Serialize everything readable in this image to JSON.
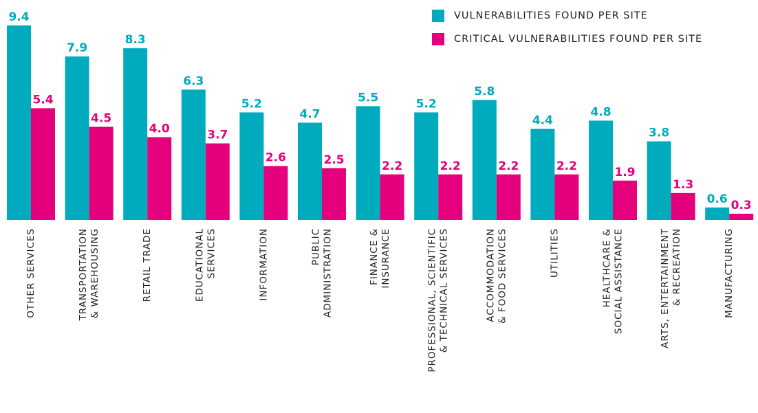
{
  "chart_data": {
    "type": "bar",
    "categories": [
      [
        "OTHER SERVICES"
      ],
      [
        "TRANSPORTATION",
        "& WAREHOUSING"
      ],
      [
        "RETAIL TRADE"
      ],
      [
        "EDUCATIONAL",
        "SERVICES"
      ],
      [
        "INFORMATION"
      ],
      [
        "PUBLIC",
        "ADMINISTRATION"
      ],
      [
        "FINANCE &",
        "INSURANCE"
      ],
      [
        "PROFESSIONAL, SCIENTIFIC",
        "& TECHNICAL SERVICES"
      ],
      [
        "ACCOMMODATION",
        "& FOOD SERVICES"
      ],
      [
        "UTILITIES"
      ],
      [
        "HEALTHCARE &",
        "SOCIAL ASSISTANCE"
      ],
      [
        "ARTS, ENTERTAINMENT",
        "& RECREATION"
      ],
      [
        "MANUFACTURING"
      ]
    ],
    "series": [
      {
        "name": "VULNERABILITIES FOUND PER SITE",
        "color": "#00abbd",
        "values": [
          9.4,
          7.9,
          8.3,
          6.3,
          5.2,
          4.7,
          5.5,
          5.2,
          5.8,
          4.4,
          4.8,
          3.8,
          0.6
        ]
      },
      {
        "name": "CRITICAL VULNERABILITIES FOUND PER SITE",
        "color": "#e5007d",
        "values": [
          5.4,
          4.5,
          4.0,
          3.7,
          2.6,
          2.5,
          2.2,
          2.2,
          2.2,
          2.2,
          1.9,
          1.3,
          0.3
        ],
        "value_labels": [
          "5.4",
          "4.5",
          "4.0",
          "3.7",
          "2.6",
          "2.5",
          "2.2",
          "2.2",
          "2.2",
          "2.2",
          "1.9",
          "1.3",
          "0.3"
        ]
      }
    ],
    "legend": "top-right"
  }
}
